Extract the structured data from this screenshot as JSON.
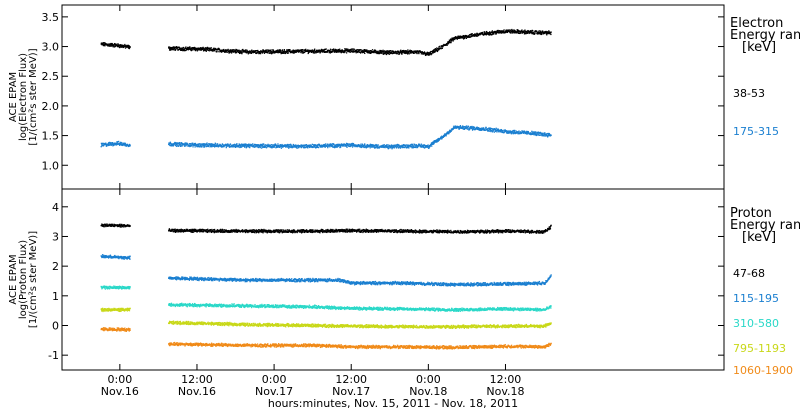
{
  "chart_data": {
    "type": "scatter",
    "xlabel": "hours:minutes, Nov. 15, 2011 - Nov. 18, 2011",
    "x_range_hours": [
      -9,
      94
    ],
    "x_ticks": [
      {
        "hours": 0,
        "time": "0:00",
        "date": "Nov.16"
      },
      {
        "hours": 12,
        "time": "12:00",
        "date": "Nov.16"
      },
      {
        "hours": 24,
        "time": "0:00",
        "date": "Nov.17"
      },
      {
        "hours": 36,
        "time": "12:00",
        "date": "Nov.17"
      },
      {
        "hours": 48,
        "time": "0:00",
        "date": "Nov.18"
      },
      {
        "hours": 60,
        "time": "12:00",
        "date": "Nov.18"
      }
    ],
    "panels": [
      {
        "id": "electron",
        "ylabel_lines": [
          "ACE EPAM",
          "log(Electron Flux)",
          "[1/(cm²s ster MeV)]"
        ],
        "ylim": [
          0.6,
          3.7
        ],
        "yticks": [
          "1.0",
          "1.5",
          "2.0",
          "2.5",
          "3.0",
          "3.5"
        ],
        "legend_title_lines": [
          "Electron",
          "Energy ranges",
          "[keV]"
        ],
        "series": [
          {
            "name": "38-53",
            "color": "#000000",
            "segments": [
              {
                "x": [
                  -3.0,
                  -0.5,
                  1.5
                ],
                "y": [
                  3.05,
                  3.03,
                  3.0
                ]
              },
              {
                "x": [
                  7.5,
                  12,
                  20,
                  28,
                  36,
                  42,
                  46,
                  48,
                  50,
                  52,
                  56,
                  60,
                  64,
                  67
                ],
                "y": [
                  2.98,
                  2.97,
                  2.92,
                  2.93,
                  2.94,
                  2.91,
                  2.92,
                  2.88,
                  3.0,
                  3.15,
                  3.22,
                  3.27,
                  3.25,
                  3.24
                ]
              }
            ]
          },
          {
            "name": "175-315",
            "color": "#1a7fd0",
            "segments": [
              {
                "x": [
                  -3.0,
                  -0.5,
                  1.5
                ],
                "y": [
                  1.35,
                  1.38,
                  1.35
                ]
              },
              {
                "x": [
                  7.5,
                  12,
                  20,
                  28,
                  36,
                  42,
                  46,
                  48,
                  50,
                  52,
                  56,
                  60,
                  64,
                  67
                ],
                "y": [
                  1.37,
                  1.35,
                  1.34,
                  1.33,
                  1.35,
                  1.32,
                  1.34,
                  1.33,
                  1.48,
                  1.65,
                  1.63,
                  1.58,
                  1.55,
                  1.52
                ]
              }
            ]
          }
        ]
      },
      {
        "id": "proton",
        "ylabel_lines": [
          "ACE EPAM",
          "log(Proton Flux)",
          "[1/(cm²s ster MeV)]"
        ],
        "ylim": [
          -1.5,
          4.6
        ],
        "yticks": [
          "-1",
          "0",
          "1",
          "2",
          "3",
          "4"
        ],
        "legend_title_lines": [
          "Proton",
          "Energy ranges",
          "[keV]"
        ],
        "series": [
          {
            "name": "47-68",
            "color": "#000000",
            "segments": [
              {
                "x": [
                  -3.0,
                  1.5
                ],
                "y": [
                  3.4,
                  3.38
                ]
              },
              {
                "x": [
                  7.5,
                  20,
                  30,
                  36,
                  44,
                  52,
                  60,
                  66,
                  67
                ],
                "y": [
                  3.22,
                  3.2,
                  3.2,
                  3.22,
                  3.2,
                  3.18,
                  3.2,
                  3.18,
                  3.35
                ]
              }
            ]
          },
          {
            "name": "115-195",
            "color": "#1a7fd0",
            "segments": [
              {
                "x": [
                  -3.0,
                  1.5
                ],
                "y": [
                  2.35,
                  2.3
                ]
              },
              {
                "x": [
                  7.5,
                  20,
                  30,
                  34,
                  36,
                  44,
                  52,
                  60,
                  66,
                  67
                ],
                "y": [
                  1.62,
                  1.55,
                  1.55,
                  1.55,
                  1.45,
                  1.45,
                  1.4,
                  1.42,
                  1.45,
                  1.7
                ]
              }
            ]
          },
          {
            "name": "310-580",
            "color": "#2ad8c8",
            "segments": [
              {
                "x": [
                  -3.0,
                  1.5
                ],
                "y": [
                  1.3,
                  1.3
                ]
              },
              {
                "x": [
                  7.5,
                  20,
                  30,
                  36,
                  44,
                  52,
                  60,
                  66,
                  67
                ],
                "y": [
                  0.72,
                  0.68,
                  0.65,
                  0.6,
                  0.58,
                  0.55,
                  0.58,
                  0.55,
                  0.65
                ]
              }
            ]
          },
          {
            "name": "795-1193",
            "color": "#c8d818",
            "segments": [
              {
                "x": [
                  -3.0,
                  1.5
                ],
                "y": [
                  0.55,
                  0.55
                ]
              },
              {
                "x": [
                  7.5,
                  20,
                  30,
                  36,
                  44,
                  52,
                  60,
                  66,
                  67
                ],
                "y": [
                  0.12,
                  0.05,
                  0.02,
                  0.0,
                  -0.02,
                  -0.02,
                  0.0,
                  0.0,
                  0.1
                ]
              }
            ]
          },
          {
            "name": "1060-1900",
            "color": "#f08a18",
            "segments": [
              {
                "x": [
                  -3.0,
                  1.5
                ],
                "y": [
                  -0.1,
                  -0.12
                ]
              },
              {
                "x": [
                  7.5,
                  20,
                  30,
                  36,
                  44,
                  52,
                  60,
                  66,
                  67
                ],
                "y": [
                  -0.6,
                  -0.65,
                  -0.65,
                  -0.7,
                  -0.7,
                  -0.72,
                  -0.68,
                  -0.7,
                  -0.6
                ]
              }
            ]
          }
        ]
      }
    ]
  }
}
